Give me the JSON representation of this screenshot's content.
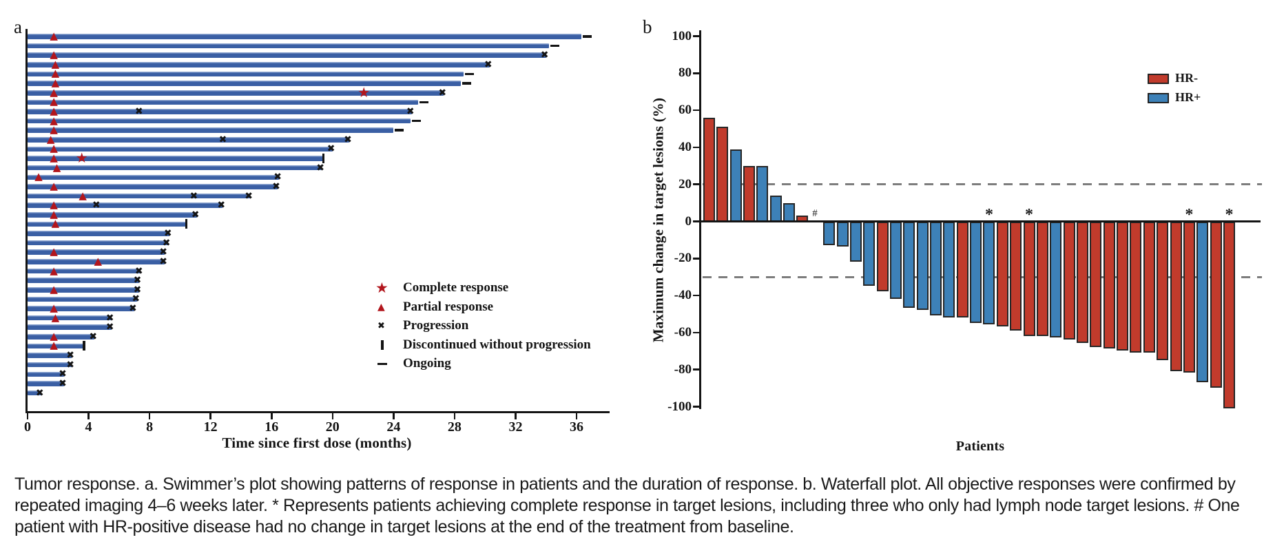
{
  "caption": {
    "text": "Tumor response. a. Swimmer’s plot showing patterns of response in patients and the duration of response. b. Waterfall plot. All objective responses were confirmed by repeated imaging 4–6 weeks later. * Represents patients achieving complete response in target lesions, including three who only had lymph node target lesions. # One patient with HR-positive disease had no change in target lesions at the end of the treatment from baseline."
  },
  "colors": {
    "swimmer_bar_blue": "#3a5fa4",
    "swimmer_bar_highlight": "#8ea6d0",
    "response_marker_red": "#b2161d",
    "event_marker_black": "#141414",
    "waterfall_red": "#c13b2c",
    "waterfall_blue": "#3d81b8",
    "reference_line_gray": "#7d7d7d"
  },
  "chart_data": [
    {
      "type": "swimmer",
      "title": "a",
      "xlabel": "Time since first dose (months)",
      "xlim": [
        0,
        38
      ],
      "x_ticks": [
        0,
        4,
        8,
        12,
        16,
        20,
        24,
        28,
        32,
        36
      ],
      "grid": false,
      "legend_position": "lower-right-inside",
      "legend": [
        {
          "symbol": "star",
          "label": "Complete response"
        },
        {
          "symbol": "triangle",
          "label": "Partial response"
        },
        {
          "symbol": "cross",
          "label": "Progression"
        },
        {
          "symbol": "tickbar",
          "label": "Discontinued without progression"
        },
        {
          "symbol": "dash",
          "label": "Ongoing"
        }
      ],
      "series": [
        {
          "duration": 36.3,
          "events": [
            {
              "type": "partial_response",
              "month": 1.8
            },
            {
              "type": "ongoing",
              "month": 36.3
            }
          ]
        },
        {
          "duration": 34.2,
          "events": [
            {
              "type": "ongoing",
              "month": 34.2
            }
          ]
        },
        {
          "duration": 34.0,
          "events": [
            {
              "type": "partial_response",
              "month": 1.8
            },
            {
              "type": "progression",
              "month": 34.0
            }
          ]
        },
        {
          "duration": 30.3,
          "events": [
            {
              "type": "partial_response",
              "month": 1.9
            },
            {
              "type": "progression",
              "month": 30.3
            }
          ]
        },
        {
          "duration": 28.6,
          "events": [
            {
              "type": "partial_response",
              "month": 1.9
            },
            {
              "type": "ongoing",
              "month": 28.6
            }
          ]
        },
        {
          "duration": 28.4,
          "events": [
            {
              "type": "partial_response",
              "month": 1.9
            },
            {
              "type": "ongoing",
              "month": 28.4
            }
          ]
        },
        {
          "duration": 27.3,
          "events": [
            {
              "type": "partial_response",
              "month": 1.8
            },
            {
              "type": "complete_response",
              "month": 22.1
            },
            {
              "type": "progression",
              "month": 27.3
            }
          ]
        },
        {
          "duration": 25.6,
          "events": [
            {
              "type": "partial_response",
              "month": 1.8
            },
            {
              "type": "ongoing",
              "month": 25.6
            }
          ]
        },
        {
          "duration": 25.2,
          "events": [
            {
              "type": "partial_response",
              "month": 1.8
            },
            {
              "type": "progression",
              "month": 7.4
            },
            {
              "type": "progression",
              "month": 25.2
            }
          ]
        },
        {
          "duration": 25.1,
          "events": [
            {
              "type": "partial_response",
              "month": 1.8
            },
            {
              "type": "ongoing",
              "month": 25.1
            }
          ]
        },
        {
          "duration": 24.0,
          "events": [
            {
              "type": "partial_response",
              "month": 1.8
            },
            {
              "type": "ongoing",
              "month": 24.0
            }
          ]
        },
        {
          "duration": 21.1,
          "events": [
            {
              "type": "partial_response",
              "month": 1.6
            },
            {
              "type": "progression",
              "month": 12.9
            },
            {
              "type": "progression",
              "month": 21.1
            }
          ]
        },
        {
          "duration": 20.0,
          "events": [
            {
              "type": "partial_response",
              "month": 1.8
            },
            {
              "type": "progression",
              "month": 20.0
            }
          ]
        },
        {
          "duration": 19.4,
          "events": [
            {
              "type": "partial_response",
              "month": 1.8
            },
            {
              "type": "complete_response",
              "month": 3.6
            },
            {
              "type": "discontinued",
              "month": 19.4
            }
          ]
        },
        {
          "duration": 19.3,
          "events": [
            {
              "type": "partial_response",
              "month": 2.0
            },
            {
              "type": "progression",
              "month": 19.3
            }
          ]
        },
        {
          "duration": 16.5,
          "events": [
            {
              "type": "partial_response",
              "month": 0.8
            },
            {
              "type": "progression",
              "month": 16.5
            }
          ]
        },
        {
          "duration": 16.4,
          "events": [
            {
              "type": "partial_response",
              "month": 1.8
            },
            {
              "type": "progression",
              "month": 16.4
            }
          ]
        },
        {
          "duration": 14.6,
          "events": [
            {
              "type": "partial_response",
              "month": 3.7
            },
            {
              "type": "progression",
              "month": 11.0
            },
            {
              "type": "progression",
              "month": 14.6
            }
          ]
        },
        {
          "duration": 12.8,
          "events": [
            {
              "type": "partial_response",
              "month": 1.8
            },
            {
              "type": "progression",
              "month": 4.6
            },
            {
              "type": "progression",
              "month": 12.8
            }
          ]
        },
        {
          "duration": 11.1,
          "events": [
            {
              "type": "partial_response",
              "month": 1.8
            },
            {
              "type": "progression",
              "month": 11.1
            }
          ]
        },
        {
          "duration": 10.4,
          "events": [
            {
              "type": "partial_response",
              "month": 1.9
            },
            {
              "type": "discontinued",
              "month": 10.4
            }
          ]
        },
        {
          "duration": 9.3,
          "events": [
            {
              "type": "progression",
              "month": 9.3
            }
          ]
        },
        {
          "duration": 9.2,
          "events": [
            {
              "type": "progression",
              "month": 9.2
            }
          ]
        },
        {
          "duration": 9.0,
          "events": [
            {
              "type": "partial_response",
              "month": 1.8
            },
            {
              "type": "progression",
              "month": 9.0
            }
          ]
        },
        {
          "duration": 9.0,
          "events": [
            {
              "type": "partial_response",
              "month": 4.7
            },
            {
              "type": "progression",
              "month": 9.0
            }
          ]
        },
        {
          "duration": 7.4,
          "events": [
            {
              "type": "partial_response",
              "month": 1.8
            },
            {
              "type": "progression",
              "month": 7.4
            }
          ]
        },
        {
          "duration": 7.3,
          "events": [
            {
              "type": "progression",
              "month": 7.3
            }
          ]
        },
        {
          "duration": 7.3,
          "events": [
            {
              "type": "partial_response",
              "month": 1.8
            },
            {
              "type": "progression",
              "month": 7.3
            }
          ]
        },
        {
          "duration": 7.2,
          "events": [
            {
              "type": "progression",
              "month": 7.2
            }
          ]
        },
        {
          "duration": 7.0,
          "events": [
            {
              "type": "partial_response",
              "month": 1.8
            },
            {
              "type": "progression",
              "month": 7.0
            }
          ]
        },
        {
          "duration": 5.5,
          "events": [
            {
              "type": "partial_response",
              "month": 1.9
            },
            {
              "type": "progression",
              "month": 5.5
            }
          ]
        },
        {
          "duration": 5.5,
          "events": [
            {
              "type": "progression",
              "month": 5.5
            }
          ]
        },
        {
          "duration": 4.4,
          "events": [
            {
              "type": "partial_response",
              "month": 1.8
            },
            {
              "type": "progression",
              "month": 4.4
            }
          ]
        },
        {
          "duration": 3.7,
          "events": [
            {
              "type": "partial_response",
              "month": 1.8
            },
            {
              "type": "discontinued",
              "month": 3.7
            }
          ]
        },
        {
          "duration": 2.9,
          "events": [
            {
              "type": "progression",
              "month": 2.9
            }
          ]
        },
        {
          "duration": 2.9,
          "events": [
            {
              "type": "progression",
              "month": 2.9
            }
          ]
        },
        {
          "duration": 2.4,
          "events": [
            {
              "type": "progression",
              "month": 2.4
            }
          ]
        },
        {
          "duration": 2.4,
          "events": [
            {
              "type": "progression",
              "month": 2.4
            }
          ]
        },
        {
          "duration": 0.9,
          "events": [
            {
              "type": "progression",
              "month": 0.9
            }
          ]
        }
      ]
    },
    {
      "type": "bar",
      "title": "b",
      "ylabel": "Maximum change in target lesions (%)",
      "xlabel": "Patients",
      "ylim": [
        -100,
        100
      ],
      "y_ticks": [
        100,
        80,
        60,
        40,
        20,
        0,
        -20,
        -40,
        -60,
        -80,
        -100
      ],
      "reference_lines": [
        20,
        -30
      ],
      "grid": false,
      "legend_position": "upper-right-inside",
      "legend": [
        {
          "name": "HR-",
          "color": "#c13b2c"
        },
        {
          "name": "HR+",
          "color": "#3d81b8"
        }
      ],
      "values": [
        {
          "v": 56,
          "hr": "HR-"
        },
        {
          "v": 51,
          "hr": "HR-"
        },
        {
          "v": 39,
          "hr": "HR+"
        },
        {
          "v": 30,
          "hr": "HR-"
        },
        {
          "v": 30,
          "hr": "HR+"
        },
        {
          "v": 14,
          "hr": "HR+"
        },
        {
          "v": 10,
          "hr": "HR+"
        },
        {
          "v": 3,
          "hr": "HR-"
        },
        {
          "v": 0,
          "hr": "HR+",
          "mark": "#"
        },
        {
          "v": -12,
          "hr": "HR+"
        },
        {
          "v": -13,
          "hr": "HR+"
        },
        {
          "v": -21,
          "hr": "HR+"
        },
        {
          "v": -34,
          "hr": "HR+"
        },
        {
          "v": -37,
          "hr": "HR-"
        },
        {
          "v": -41,
          "hr": "HR+"
        },
        {
          "v": -46,
          "hr": "HR+"
        },
        {
          "v": -47,
          "hr": "HR+"
        },
        {
          "v": -50,
          "hr": "HR+"
        },
        {
          "v": -51,
          "hr": "HR+"
        },
        {
          "v": -51,
          "hr": "HR-"
        },
        {
          "v": -54,
          "hr": "HR+"
        },
        {
          "v": -55,
          "hr": "HR+",
          "mark": "*"
        },
        {
          "v": -56,
          "hr": "HR-"
        },
        {
          "v": -58,
          "hr": "HR-"
        },
        {
          "v": -61,
          "hr": "HR-",
          "mark": "*"
        },
        {
          "v": -61,
          "hr": "HR-"
        },
        {
          "v": -62,
          "hr": "HR+"
        },
        {
          "v": -63,
          "hr": "HR-"
        },
        {
          "v": -65,
          "hr": "HR-"
        },
        {
          "v": -67,
          "hr": "HR-"
        },
        {
          "v": -68,
          "hr": "HR-"
        },
        {
          "v": -69,
          "hr": "HR-"
        },
        {
          "v": -70,
          "hr": "HR-"
        },
        {
          "v": -70,
          "hr": "HR-"
        },
        {
          "v": -74,
          "hr": "HR-"
        },
        {
          "v": -80,
          "hr": "HR-"
        },
        {
          "v": -81,
          "hr": "HR-",
          "mark": "*"
        },
        {
          "v": -86,
          "hr": "HR+"
        },
        {
          "v": -89,
          "hr": "HR-"
        },
        {
          "v": -100,
          "hr": "HR-",
          "mark": "*"
        }
      ]
    }
  ]
}
